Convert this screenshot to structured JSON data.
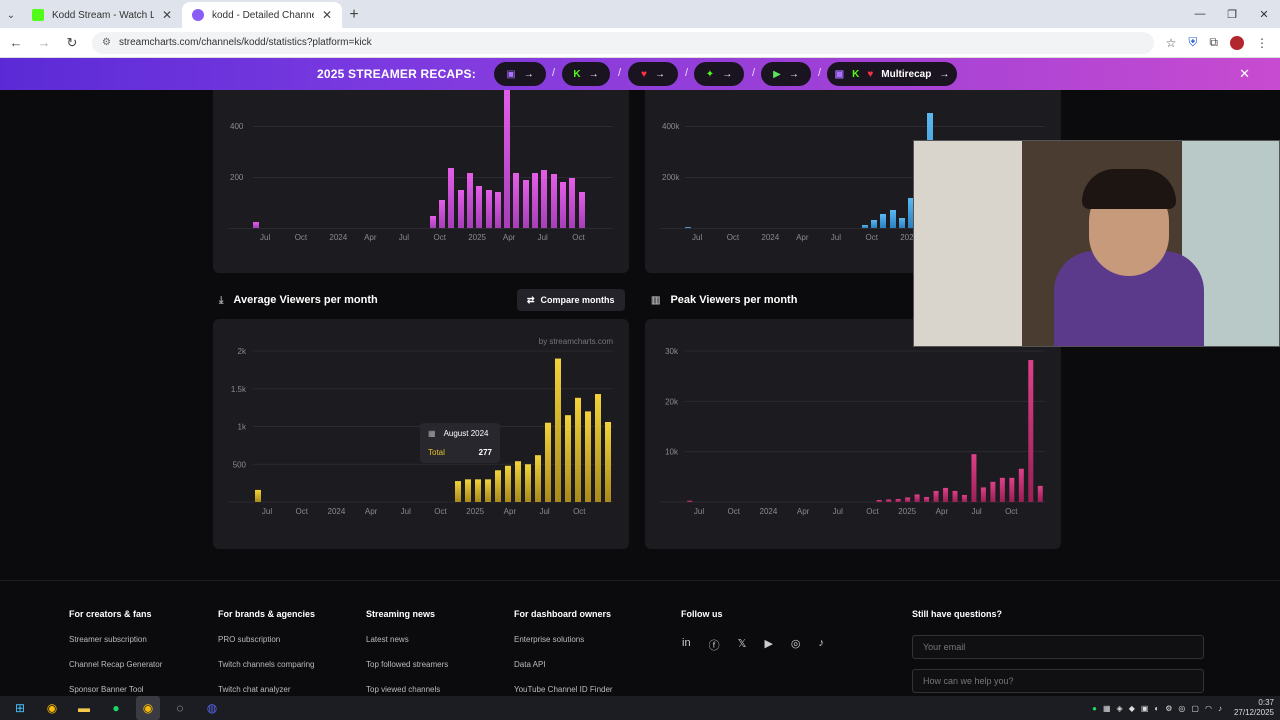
{
  "browser": {
    "tabs": [
      {
        "title": "Kodd Stream - Watch Live on K",
        "favicon_color": "#53fc18"
      },
      {
        "title": "kodd - Detailed Channel Viewe",
        "favicon_color": "#8a5cf6"
      }
    ],
    "url": "streamcharts.com/channels/kodd/statistics?platform=kick"
  },
  "banner": {
    "title": "2025 STREAMER RECAPS:",
    "multirecap_label": "Multirecap",
    "separator": "/"
  },
  "top_left_chart": {
    "y_ticks": [
      "400",
      "200"
    ],
    "x_ticks": [
      "Jul",
      "Oct",
      "2024",
      "Apr",
      "Jul",
      "Oct",
      "2025",
      "Apr",
      "Jul",
      "Oct"
    ]
  },
  "top_right_chart": {
    "y_ticks": [
      "400k",
      "200k"
    ],
    "x_ticks": [
      "Jul",
      "Oct",
      "2024",
      "Apr",
      "Jul",
      "Oct",
      "202"
    ]
  },
  "avg_section": {
    "title": "Average Viewers per month",
    "compare_label": "Compare months",
    "watermark": "by streamcharts.com",
    "tooltip": {
      "date": "August 2024",
      "label": "Total",
      "value": "277"
    }
  },
  "peak_section": {
    "title": "Peak Viewers per month"
  },
  "chart_data": [
    {
      "type": "bar",
      "title": "Average Viewers per month",
      "ylim": [
        0,
        2000
      ],
      "y_ticks": [
        "2k",
        "1.5k",
        "1k",
        "500"
      ],
      "x_ticks": [
        "Jul",
        "Oct",
        "2024",
        "Apr",
        "Jul",
        "Oct",
        "2025",
        "Apr",
        "Jul",
        "Oct"
      ],
      "color": "#e6c229",
      "values": [
        160,
        0,
        0,
        0,
        0,
        0,
        0,
        0,
        0,
        0,
        0,
        0,
        0,
        0,
        0,
        0,
        0,
        0,
        0,
        0,
        277,
        300,
        300,
        300,
        420,
        480,
        540,
        500,
        620,
        1050,
        1900,
        1150,
        1380,
        1200,
        1430,
        1060
      ]
    },
    {
      "type": "bar",
      "title": "Peak Viewers per month",
      "ylim": [
        0,
        30000
      ],
      "y_ticks": [
        "30k",
        "20k",
        "10k"
      ],
      "x_ticks": [
        "Jul",
        "Oct",
        "2024",
        "Apr",
        "Jul",
        "Oct",
        "2025",
        "Apr",
        "Jul",
        "Oct"
      ],
      "color": "#d6327a",
      "values": [
        250,
        0,
        0,
        0,
        0,
        0,
        0,
        0,
        0,
        0,
        0,
        0,
        0,
        0,
        0,
        0,
        0,
        0,
        0,
        0,
        400,
        500,
        600,
        900,
        1500,
        1000,
        2200,
        2800,
        2200,
        1400,
        9500,
        2900,
        4000,
        4800,
        4800,
        6600,
        28200,
        3200
      ]
    }
  ],
  "footer": {
    "columns": [
      {
        "heading": "For creators & fans",
        "links": [
          "Streamer subscription",
          "Channel Recap Generator",
          "Sponsor Banner Tool"
        ]
      },
      {
        "heading": "For brands & agencies",
        "links": [
          "PRO subscription",
          "Twitch channels comparing",
          "Twitch chat analyzer"
        ]
      },
      {
        "heading": "Streaming news",
        "links": [
          "Latest news",
          "Top followed streamers",
          "Top viewed channels"
        ]
      },
      {
        "heading": "For dashboard owners",
        "links": [
          "Enterprise solutions",
          "Data API",
          "YouTube Channel ID Finder"
        ]
      }
    ],
    "follow_heading": "Follow us",
    "question_heading": "Still have questions?",
    "email_placeholder": "Your email",
    "help_placeholder": "How can we help you?"
  },
  "taskbar": {
    "time": "0:37",
    "date": "27/12/2025"
  }
}
